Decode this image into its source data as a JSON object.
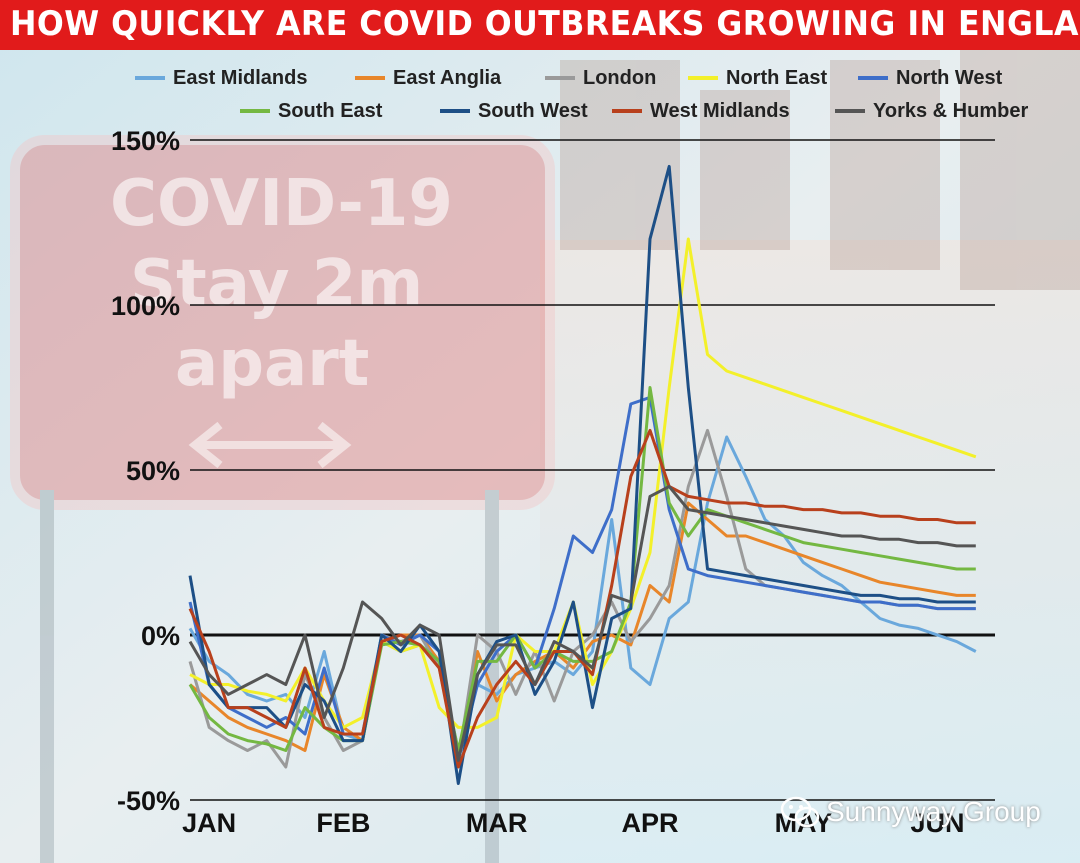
{
  "title": "HOW QUICKLY ARE COVID OUTBREAKS GROWING IN ENGLAND",
  "background_sign": {
    "line1": "COVID-19",
    "line2": "Stay 2m",
    "line3": "apart"
  },
  "watermark": "Sunnyway Group",
  "chart_data": {
    "type": "line",
    "title": "HOW QUICKLY ARE COVID OUTBREAKS GROWING IN ENGLAND",
    "xlabel": "",
    "ylabel": "",
    "ylim": [
      -50,
      150
    ],
    "yticks": [
      150,
      100,
      50,
      0,
      -50
    ],
    "ytick_labels": [
      "150%",
      "100%",
      "50%",
      "0%",
      "-50%"
    ],
    "xtick_labels": [
      "JAN",
      "FEB",
      "MAR",
      "APR",
      "MAY",
      "JUN"
    ],
    "xtick_positions": [
      2,
      9,
      17,
      25,
      33,
      40
    ],
    "x": [
      1,
      2,
      3,
      4,
      5,
      6,
      7,
      8,
      9,
      10,
      11,
      12,
      13,
      14,
      15,
      16,
      17,
      18,
      19,
      20,
      21,
      22,
      23,
      24,
      25,
      26,
      27,
      28,
      29,
      30,
      31,
      32,
      33,
      34,
      35,
      36,
      37,
      38,
      39,
      40,
      41,
      42
    ],
    "legend_position": "top",
    "grid": "horizontal",
    "series": [
      {
        "name": "East Midlands",
        "color": "#6aa8dc",
        "values": [
          2,
          -8,
          -12,
          -18,
          -20,
          -18,
          -25,
          -5,
          -30,
          -32,
          -2,
          -5,
          -3,
          -8,
          -35,
          -15,
          -18,
          -12,
          -10,
          -8,
          -12,
          -5,
          35,
          -10,
          -15,
          5,
          10,
          40,
          60,
          48,
          35,
          30,
          22,
          18,
          15,
          10,
          5,
          3,
          2,
          0,
          -2,
          -5
        ]
      },
      {
        "name": "East Anglia",
        "color": "#e8862a",
        "values": [
          -15,
          -20,
          -25,
          -28,
          -30,
          -32,
          -35,
          -12,
          -28,
          -32,
          -2,
          0,
          0,
          -8,
          -38,
          -5,
          -20,
          -12,
          -8,
          -5,
          -10,
          -2,
          0,
          -3,
          15,
          10,
          40,
          35,
          30,
          30,
          28,
          26,
          24,
          22,
          20,
          18,
          16,
          15,
          14,
          13,
          12,
          12
        ]
      },
      {
        "name": "London",
        "color": "#9a9a9a",
        "values": [
          -8,
          -28,
          -32,
          -35,
          -32,
          -40,
          -12,
          -25,
          -35,
          -32,
          0,
          -2,
          0,
          -10,
          -38,
          0,
          -5,
          -18,
          -5,
          -20,
          -5,
          0,
          10,
          -2,
          5,
          15,
          45,
          62,
          42,
          20,
          15,
          14,
          13,
          12,
          11,
          10,
          10,
          9,
          9,
          8,
          8,
          8
        ]
      },
      {
        "name": "North East",
        "color": "#f3f02a",
        "values": [
          -12,
          -15,
          -15,
          -17,
          -18,
          -20,
          -10,
          -20,
          -28,
          -25,
          -2,
          -5,
          -3,
          -22,
          -28,
          -28,
          -25,
          0,
          -5,
          -5,
          10,
          -15,
          -5,
          8,
          25,
          75,
          120,
          85,
          80,
          78,
          76,
          74,
          72,
          70,
          68,
          66,
          64,
          62,
          60,
          58,
          56,
          54
        ]
      },
      {
        "name": "North West",
        "color": "#3e6ec9",
        "values": [
          10,
          -15,
          -22,
          -25,
          -28,
          -25,
          -30,
          -10,
          -30,
          -30,
          0,
          -3,
          0,
          -5,
          -38,
          -15,
          -5,
          0,
          -10,
          8,
          30,
          25,
          38,
          70,
          72,
          38,
          20,
          18,
          17,
          16,
          15,
          14,
          13,
          12,
          11,
          10,
          10,
          9,
          9,
          8,
          8,
          8
        ]
      },
      {
        "name": "South East",
        "color": "#74b842",
        "values": [
          -15,
          -25,
          -30,
          -32,
          -33,
          -35,
          -22,
          -28,
          -32,
          -32,
          -3,
          -2,
          -3,
          -8,
          -35,
          -8,
          -8,
          0,
          -10,
          -5,
          -8,
          -8,
          -5,
          10,
          75,
          40,
          30,
          38,
          36,
          34,
          32,
          30,
          28,
          27,
          26,
          25,
          24,
          23,
          22,
          21,
          20,
          20
        ]
      },
      {
        "name": "South West",
        "color": "#1d4f86",
        "values": [
          18,
          -15,
          -22,
          -22,
          -22,
          -28,
          -15,
          -20,
          -32,
          -32,
          0,
          -5,
          3,
          -5,
          -45,
          -12,
          -2,
          0,
          -18,
          -8,
          10,
          -22,
          5,
          8,
          120,
          142,
          75,
          20,
          19,
          18,
          17,
          16,
          15,
          14,
          13,
          12,
          12,
          11,
          11,
          10,
          10,
          10
        ]
      },
      {
        "name": "West Midlands",
        "color": "#b8401c",
        "values": [
          8,
          -5,
          -22,
          -22,
          -25,
          -28,
          -10,
          -28,
          -30,
          -30,
          -2,
          0,
          -3,
          -10,
          -40,
          -25,
          -15,
          -8,
          -15,
          -5,
          -5,
          -12,
          15,
          48,
          62,
          45,
          42,
          41,
          40,
          40,
          39,
          39,
          38,
          38,
          37,
          37,
          36,
          36,
          35,
          35,
          34,
          34
        ]
      },
      {
        "name": "Yorks & Humber",
        "color": "#555555",
        "values": [
          -2,
          -12,
          -18,
          -15,
          -12,
          -15,
          0,
          -25,
          -10,
          10,
          5,
          -3,
          3,
          0,
          -38,
          -12,
          -3,
          -3,
          -15,
          -2,
          -5,
          -10,
          12,
          10,
          42,
          45,
          38,
          37,
          36,
          35,
          34,
          33,
          32,
          31,
          30,
          30,
          29,
          29,
          28,
          28,
          27,
          27
        ]
      }
    ]
  }
}
